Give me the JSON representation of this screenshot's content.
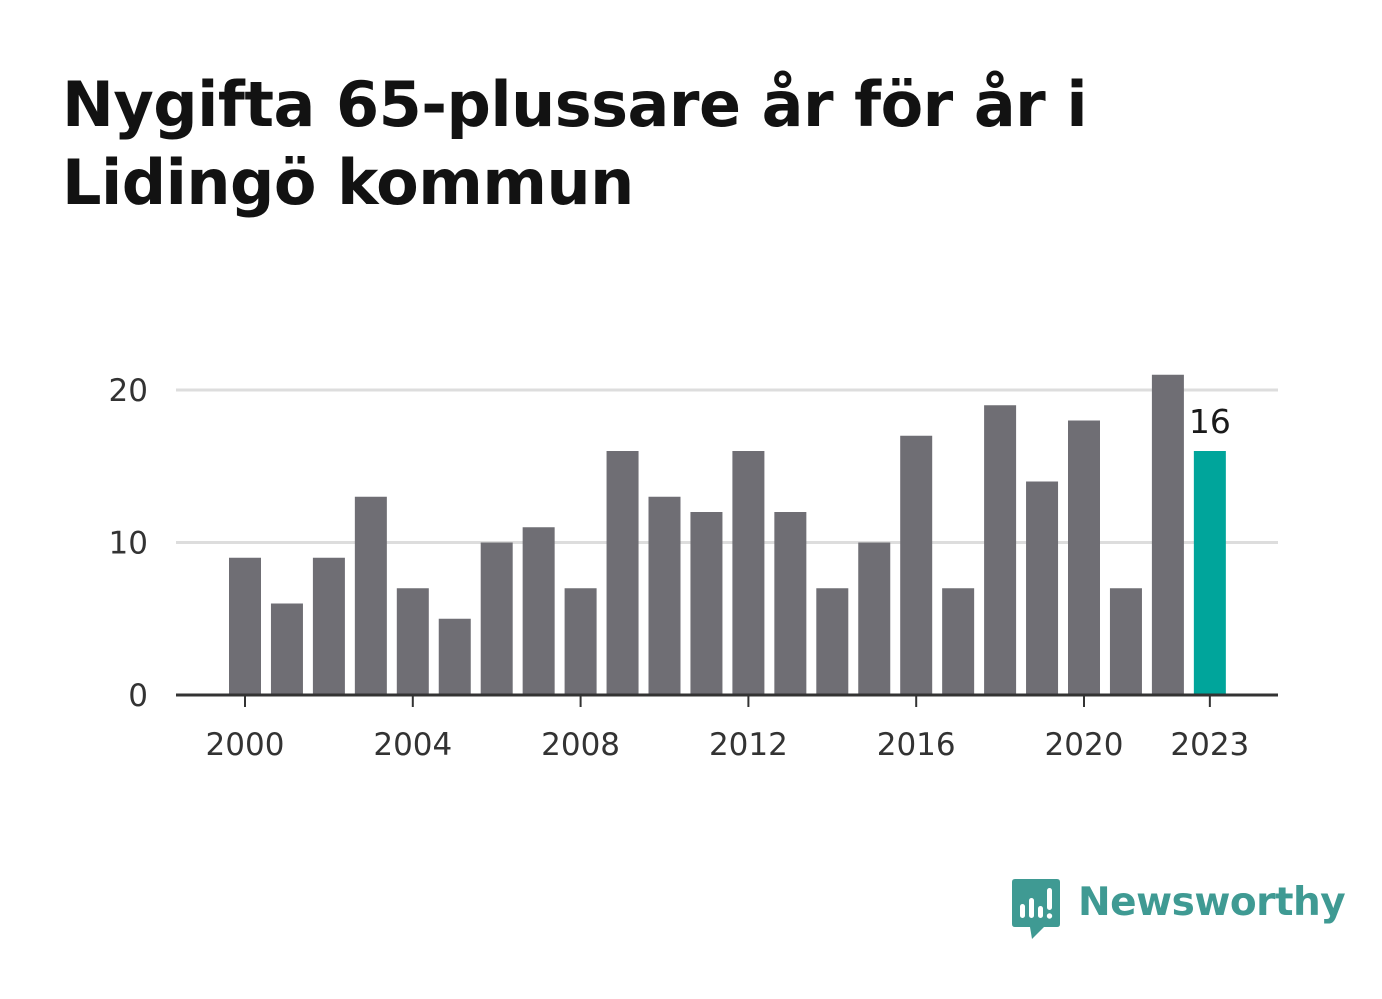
{
  "title": "Nygifta 65-plussare år för år i Lidingö kommun",
  "brand": {
    "name": "Newsworthy",
    "color": "#3f9a93",
    "icon": "bar-chart-speech-bubble-icon"
  },
  "colors": {
    "bar": "#6f6e74",
    "highlight": "#00a59b",
    "grid": "#dddddd",
    "axis": "#333333",
    "tick_text": "#333333"
  },
  "chart_data": {
    "type": "bar",
    "title": "Nygifta 65-plussare år för år i Lidingö kommun",
    "xlabel": "",
    "ylabel": "",
    "categories": [
      2000,
      2001,
      2002,
      2003,
      2004,
      2005,
      2006,
      2007,
      2008,
      2009,
      2010,
      2011,
      2012,
      2013,
      2014,
      2015,
      2016,
      2017,
      2018,
      2019,
      2020,
      2021,
      2022,
      2023
    ],
    "values": [
      9,
      6,
      9,
      13,
      7,
      5,
      10,
      11,
      7,
      16,
      13,
      12,
      16,
      12,
      7,
      10,
      17,
      7,
      19,
      14,
      18,
      7,
      21,
      16
    ],
    "ylim": [
      0,
      20
    ],
    "yticks": [
      0,
      10,
      20
    ],
    "xticks": [
      2000,
      2004,
      2008,
      2012,
      2016,
      2020,
      2023
    ],
    "highlight": {
      "category": 2023,
      "label": "16"
    },
    "grid": true,
    "legend": "none"
  }
}
